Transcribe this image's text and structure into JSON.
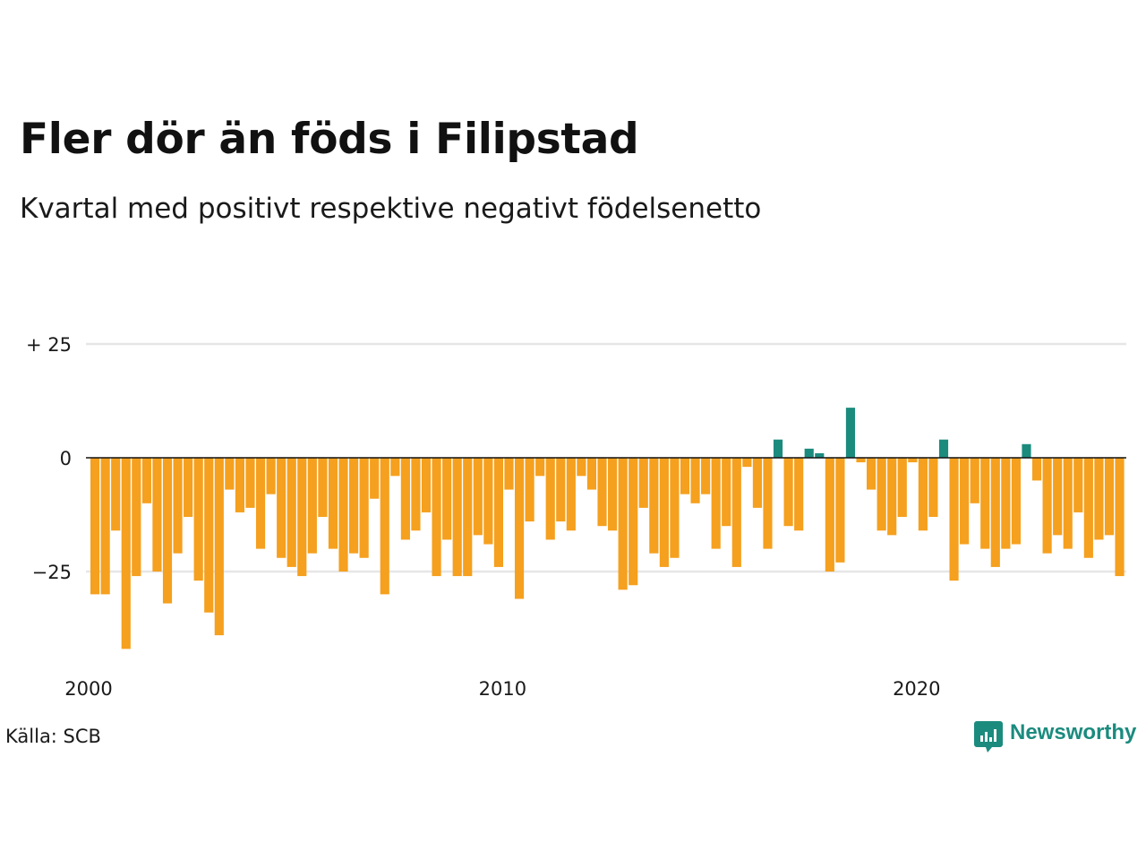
{
  "title": "Fler dör än föds i Filipstad",
  "subtitle": "Kvartal med positivt respektive negativt födelsenetto",
  "source": "Källa: SCB",
  "logo": {
    "text": "Newsworthy",
    "color": "#1b8b7e",
    "icon": "newsworthy-chart-icon"
  },
  "colors": {
    "positive": "#1b8b7e",
    "negative": "#f5a01e",
    "grid": "#e6e6e6",
    "axis": "#111111"
  },
  "chart_data": {
    "type": "bar",
    "x_start": "2000 Q1",
    "frequency": "quarterly",
    "ylim": [
      -42,
      25
    ],
    "yticks": [
      25,
      0,
      -25
    ],
    "ytick_labels": [
      "+ 25",
      "0",
      "−25"
    ],
    "xtick_labels": [
      {
        "label": "2000",
        "year": 2000
      },
      {
        "label": "2010",
        "year": 2010
      },
      {
        "label": "2020",
        "year": 2020
      }
    ],
    "grid": true,
    "values": [
      -30,
      -30,
      -16,
      -42,
      -26,
      -10,
      -25,
      -32,
      -21,
      -13,
      -27,
      -34,
      -39,
      -7,
      -12,
      -11,
      -20,
      -8,
      -22,
      -24,
      -26,
      -21,
      -13,
      -20,
      -25,
      -21,
      -22,
      -9,
      -30,
      -4,
      -18,
      -16,
      -12,
      -26,
      -18,
      -26,
      -26,
      -17,
      -19,
      -24,
      -7,
      -31,
      -14,
      -4,
      -18,
      -14,
      -16,
      -4,
      -7,
      -15,
      -16,
      -29,
      -28,
      -11,
      -21,
      -24,
      -22,
      -8,
      -10,
      -8,
      -20,
      -15,
      -24,
      -2,
      -11,
      -20,
      4,
      -15,
      -16,
      2,
      1,
      -25,
      -23,
      11,
      -1,
      -7,
      -16,
      -17,
      -13,
      -1,
      -16,
      -13,
      4,
      -27,
      -19,
      -10,
      -20,
      -24,
      -20,
      -19,
      3,
      -5,
      -21,
      -17,
      -20,
      -12,
      -22,
      -18,
      -17,
      -26
    ]
  }
}
